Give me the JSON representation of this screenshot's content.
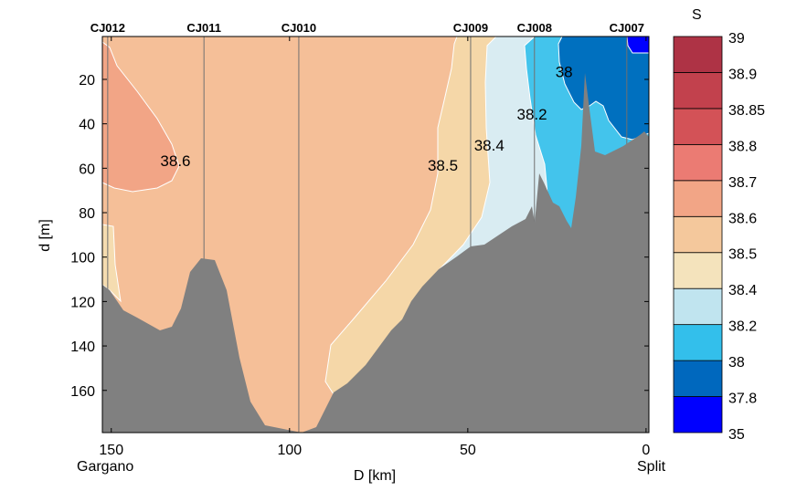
{
  "chart_data": {
    "type": "contour",
    "xlabel": "D [km]",
    "ylabel": "d [m]",
    "xlim": [
      152.5,
      -0.8
    ],
    "ylim": [
      179,
      0.7
    ],
    "x_reversed": true,
    "y_reversed": true,
    "xticks": [
      150,
      100,
      50,
      0
    ],
    "yticks": [
      20,
      40,
      60,
      80,
      100,
      120,
      140,
      160
    ],
    "x_end_labels": {
      "left": "Gargano",
      "right": "Split"
    },
    "stations": [
      {
        "name": "CJ012",
        "km": 151
      },
      {
        "name": "CJ011",
        "km": 124
      },
      {
        "name": "CJ010",
        "km": 97.4
      },
      {
        "name": "CJ009",
        "km": 49.2
      },
      {
        "name": "CJ008",
        "km": 31.3
      },
      {
        "name": "CJ007",
        "km": 5.4
      }
    ],
    "contour_labels": [
      {
        "text": "38.6",
        "km": 132,
        "m": 59
      },
      {
        "text": "38.5",
        "km": 57,
        "m": 61
      },
      {
        "text": "38.4",
        "km": 44,
        "m": 52
      },
      {
        "text": "38.2",
        "km": 32,
        "m": 38
      },
      {
        "text": "38",
        "km": 23,
        "m": 19
      }
    ],
    "colorbar": {
      "title": "S",
      "levels": [
        "35",
        "37.8",
        "38",
        "38.2",
        "38.4",
        "38.5",
        "38.6",
        "38.7",
        "38.8",
        "38.85",
        "38.9",
        "39"
      ],
      "colors": [
        "#0000FF",
        "#0068BE",
        "#33BFEB",
        "#C0E4EF",
        "#F4E3BC",
        "#F4C89C",
        "#F2A586",
        "#EB7B73",
        "#D35257",
        "#C2414D",
        "#AE3345"
      ]
    },
    "seabed_color": "#808080"
  }
}
